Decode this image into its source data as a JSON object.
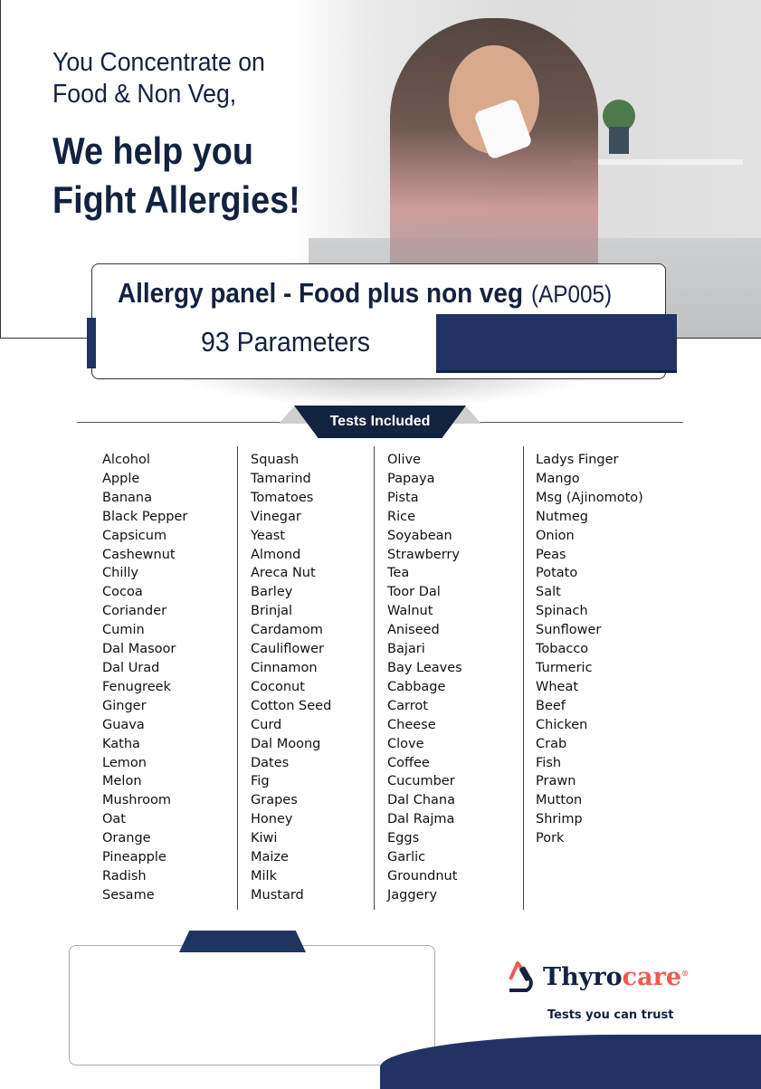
{
  "hero": {
    "line1": "You Concentrate on",
    "line2": "Food & Non Veg,",
    "bold1": "We help you",
    "bold2": "Fight Allergies!"
  },
  "panel": {
    "title": "Allergy panel - Food plus non veg",
    "code": "(AP005)",
    "parameters": "93 Parameters"
  },
  "section_label": "Tests Included",
  "tests": [
    [
      "Alcohol",
      "Apple",
      "Banana",
      "Black Pepper",
      "Capsicum",
      "Cashewnut",
      "Chilly",
      "Cocoa",
      "Coriander",
      "Cumin",
      "Dal Masoor",
      "Dal Urad",
      "Fenugreek",
      "Ginger",
      "Guava",
      "Katha",
      "Lemon",
      "Melon",
      "Mushroom",
      "Oat",
      "Orange",
      "Pineapple",
      "Radish",
      "Sesame"
    ],
    [
      "Squash",
      "Tamarind",
      "Tomatoes",
      "Vinegar",
      "Yeast",
      "Almond",
      "Areca Nut",
      "Barley",
      "Brinjal",
      "Cardamom",
      "Cauliflower",
      "Cinnamon",
      "Coconut",
      "Cotton Seed",
      "Curd",
      "Dal Moong",
      "Dates",
      "Fig",
      "Grapes",
      "Honey",
      "Kiwi",
      "Maize",
      "Milk",
      "Mustard"
    ],
    [
      "Olive",
      "Papaya",
      "Pista",
      "Rice",
      "Soyabean",
      "Strawberry",
      "Tea",
      "Toor Dal",
      "Walnut",
      "Aniseed",
      "Bajari",
      "Bay Leaves",
      "Cabbage",
      "Carrot",
      "Cheese",
      "Clove",
      "Coffee",
      "Cucumber",
      "Dal Chana",
      "Dal Rajma",
      "Eggs",
      "Garlic",
      "Groundnut",
      "Jaggery"
    ],
    [
      "Ladys Finger",
      "Mango",
      "Msg (Ajinomoto)",
      "Nutmeg",
      "Onion",
      "Peas",
      "Potato",
      "Salt",
      "Spinach",
      "Sunflower",
      "Tobacco",
      "Turmeric",
      "Wheat",
      "Beef",
      "Chicken",
      "Crab",
      "Fish",
      "Prawn",
      "Mutton",
      "Shrimp",
      "Pork"
    ]
  ],
  "brand": {
    "name_part1": "Thyro",
    "name_part2": "care",
    "tagline": "Tests you can trust",
    "icon": "microscope-drop-icon",
    "colors": {
      "navy": "#13223f",
      "coral": "#ef5a4f"
    }
  }
}
